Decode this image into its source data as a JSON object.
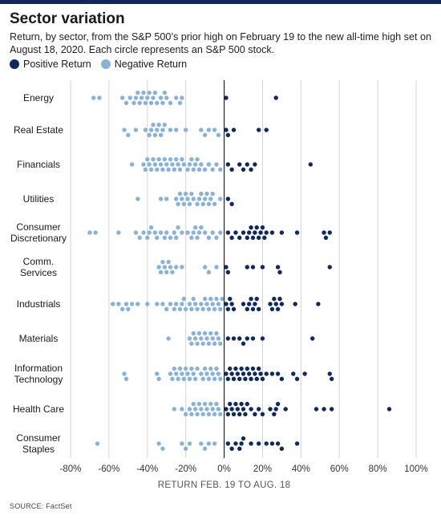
{
  "title": "Sector variation",
  "subtitle": "Return, by sector, from the S&P 500’s prior high on February 19 to the new all-time high set on August 18, 2020. Each circle represents an S&P 500 stock.",
  "legend": [
    {
      "label": "Positive Return",
      "color": "#0f2a5a"
    },
    {
      "label": "Negative Return",
      "color": "#8ab2d6"
    }
  ],
  "source": "SOURCE: FactSet",
  "chart_data": {
    "type": "scatter",
    "xlabel": "RETURN FEB. 19 TO AUG. 18",
    "xlim": [
      -80,
      100
    ],
    "xticks": [
      -80,
      -60,
      -40,
      -20,
      0,
      20,
      40,
      60,
      80,
      100
    ],
    "xtick_labels": [
      "-80%",
      "-60%",
      "-40%",
      "-20%",
      "0%",
      "20%",
      "40%",
      "60%",
      "80%",
      "100%"
    ],
    "grid": true,
    "legend_position": "top-left",
    "colors": {
      "positive": "#0f2a5a",
      "negative": "#8ab2d6"
    },
    "categories": [
      {
        "label": "Energy",
        "values": [
          -68,
          -65,
          -53,
          -51,
          -49,
          -47,
          -46,
          -45,
          -44,
          -43,
          -42,
          -41,
          -40,
          -39,
          -38,
          -37,
          -36,
          -35,
          -33,
          -32,
          -31,
          -30,
          -28,
          -25,
          -23,
          -22,
          1,
          27
        ]
      },
      {
        "label": "Real Estate",
        "values": [
          -52,
          -50,
          -46,
          -41,
          -39,
          -38,
          -37,
          -36,
          -35,
          -34,
          -33,
          -32,
          -31,
          -28,
          -25,
          -20,
          -12,
          -10,
          -8,
          -5,
          -3,
          1,
          2,
          5,
          18,
          22
        ]
      },
      {
        "label": "Financials",
        "values": [
          -48,
          -42,
          -41,
          -40,
          -39,
          -38,
          -37,
          -36,
          -35,
          -34,
          -33,
          -32,
          -31,
          -30,
          -29,
          -28,
          -27,
          -26,
          -25,
          -24,
          -23,
          -22,
          -21,
          -19,
          -18,
          -17,
          -16,
          -15,
          -14,
          -13,
          -12,
          -10,
          -8,
          -6,
          -4,
          -2,
          2,
          4,
          8,
          10,
          12,
          14,
          16,
          45
        ]
      },
      {
        "label": "Utilities",
        "values": [
          -45,
          -33,
          -30,
          -25,
          -24,
          -23,
          -22,
          -21,
          -20,
          -19,
          -18,
          -17,
          -16,
          -14,
          -13,
          -12,
          -11,
          -10,
          -9,
          -8,
          -7,
          -6,
          -5,
          -2,
          2,
          4
        ]
      },
      {
        "label": "Consumer Discretionary",
        "values": [
          -70,
          -67,
          -55,
          -46,
          -44,
          -42,
          -40,
          -39,
          -38,
          -36,
          -35,
          -33,
          -31,
          -30,
          -28,
          -26,
          -25,
          -24,
          -22,
          -19,
          -17,
          -16,
          -15,
          -14,
          -13,
          -12,
          -10,
          -8,
          -6,
          -4,
          -2,
          2,
          4,
          6,
          8,
          10,
          12,
          13,
          14,
          15,
          16,
          17,
          18,
          19,
          20,
          21,
          22,
          25,
          30,
          38,
          52,
          53,
          55
        ]
      },
      {
        "label": "Comm. Services",
        "values": [
          -34,
          -33,
          -32,
          -31,
          -30,
          -29,
          -28,
          -27,
          -25,
          -22,
          -10,
          -8,
          -4,
          1,
          2,
          12,
          15,
          20,
          28,
          29,
          55
        ]
      },
      {
        "label": "Industrials",
        "values": [
          -58,
          -55,
          -53,
          -51,
          -50,
          -48,
          -45,
          -40,
          -35,
          -32,
          -30,
          -28,
          -26,
          -25,
          -23,
          -22,
          -21,
          -20,
          -18,
          -17,
          -16,
          -15,
          -14,
          -12,
          -11,
          -10,
          -9,
          -8,
          -7,
          -6,
          -5,
          -4,
          -3,
          -2,
          -1,
          1,
          2,
          3,
          4,
          5,
          10,
          12,
          13,
          14,
          15,
          16,
          17,
          18,
          24,
          25,
          26,
          27,
          28,
          29,
          30,
          37,
          49
        ]
      },
      {
        "label": "Materials",
        "values": [
          -29,
          -18,
          -17,
          -16,
          -15,
          -14,
          -13,
          -12,
          -11,
          -10,
          -9,
          -8,
          -7,
          -6,
          -5,
          -4,
          -3,
          -2,
          2,
          5,
          8,
          10,
          12,
          15,
          20,
          46
        ]
      },
      {
        "label": "Information Technology",
        "values": [
          -52,
          -51,
          -35,
          -34,
          -28,
          -27,
          -26,
          -25,
          -24,
          -23,
          -22,
          -21,
          -20,
          -19,
          -18,
          -17,
          -16,
          -15,
          -14,
          -12,
          -11,
          -10,
          -9,
          -8,
          -7,
          -6,
          -5,
          -4,
          -3,
          -2,
          1,
          2,
          3,
          4,
          5,
          6,
          7,
          8,
          9,
          10,
          11,
          12,
          13,
          14,
          15,
          16,
          17,
          18,
          19,
          20,
          22,
          25,
          28,
          30,
          36,
          38,
          42,
          55,
          56
        ]
      },
      {
        "label": "Health Care",
        "values": [
          -26,
          -22,
          -20,
          -18,
          -17,
          -16,
          -15,
          -14,
          -13,
          -12,
          -11,
          -10,
          -9,
          -8,
          -7,
          -6,
          -5,
          -4,
          -3,
          -2,
          1,
          2,
          3,
          4,
          5,
          6,
          7,
          8,
          9,
          10,
          11,
          12,
          14,
          16,
          18,
          20,
          24,
          26,
          27,
          28,
          32,
          48,
          52,
          56,
          86
        ]
      },
      {
        "label": "Consumer Staples",
        "values": [
          -66,
          -34,
          -32,
          -22,
          -20,
          -18,
          -12,
          -10,
          -8,
          -5,
          2,
          4,
          6,
          8,
          9,
          10,
          14,
          18,
          22,
          25,
          28,
          30,
          38
        ]
      }
    ]
  }
}
